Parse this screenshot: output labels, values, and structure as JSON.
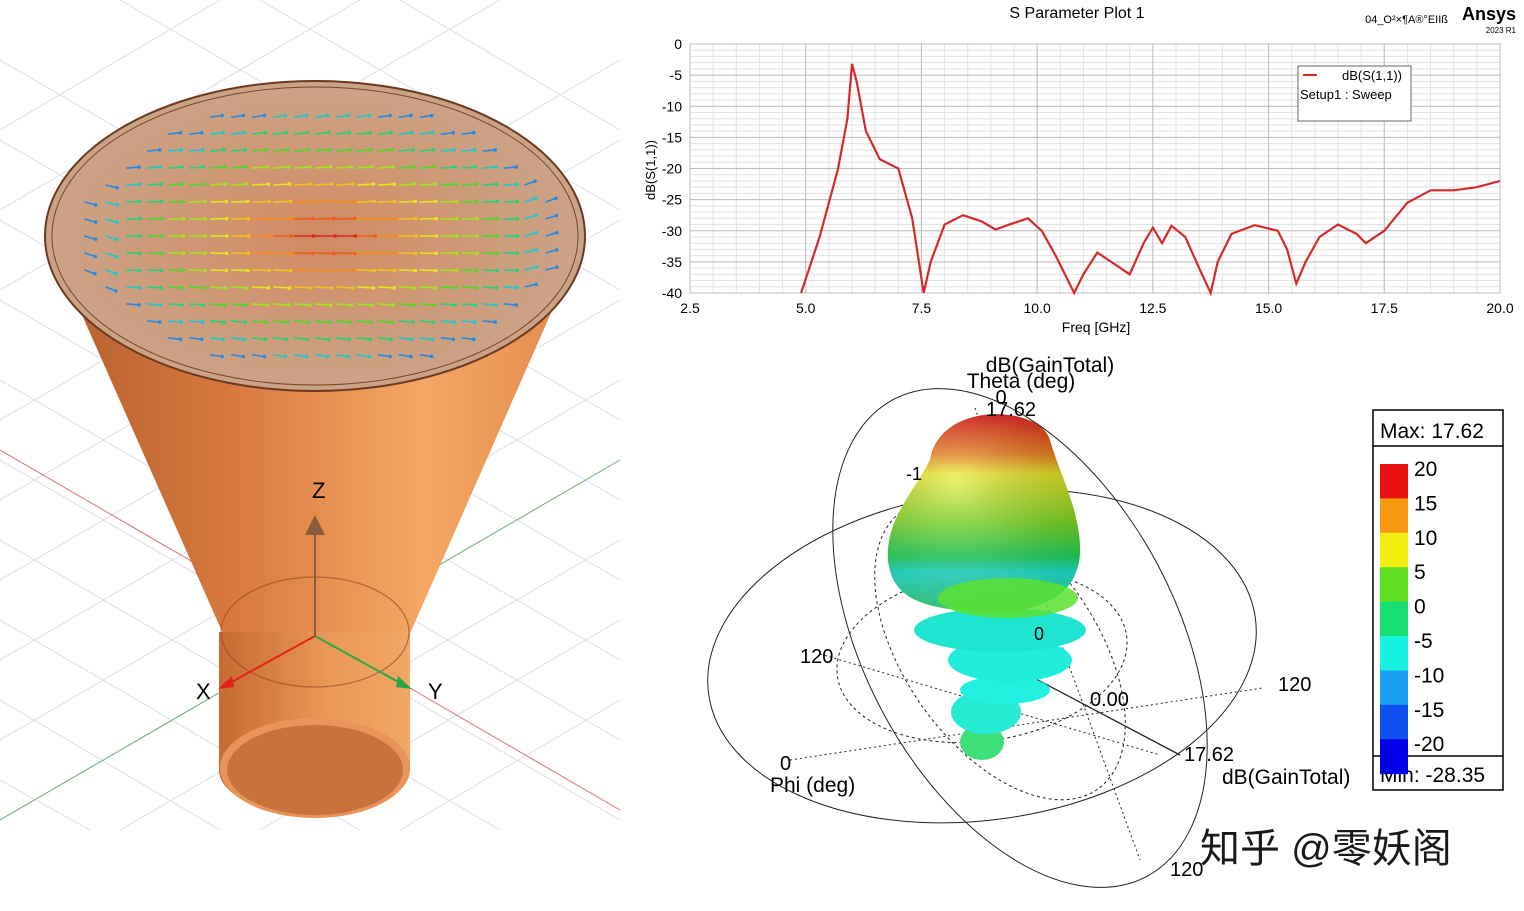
{
  "colors": {
    "horn": "#d9783f",
    "horn_light": "#f2a766",
    "horn_dark": "#b35e2d",
    "curve": "#d42a2a",
    "grid": "#cfcfcf",
    "axis_z": "#8a5a3c",
    "axis_x": "#e0211d",
    "axis_y": "#2aa54a"
  },
  "model_view": {
    "axis_labels": {
      "x": "X",
      "y": "Y",
      "z": "Z"
    }
  },
  "s_plot": {
    "project": "04_O²×¶A®°EIIß",
    "brand": "Ansys",
    "brand_version": "2023 R1"
  },
  "chart_data": [
    {
      "type": "line",
      "title": "S Parameter Plot 1",
      "xlabel": "Freq [GHz]",
      "ylabel": "dB(S(1,1))",
      "xlim": [
        2.5,
        20.0
      ],
      "ylim": [
        -40,
        0
      ],
      "xticks": [
        2.5,
        5.0,
        7.5,
        10.0,
        12.5,
        15.0,
        17.5,
        20.0
      ],
      "xtick_labels": [
        "2.5",
        "5.0",
        "7.5",
        "10.0",
        "12.5",
        "15.0",
        "17.5",
        "20.0"
      ],
      "yticks": [
        0,
        -5,
        -10,
        -15,
        -20,
        -25,
        -30,
        -35,
        -40
      ],
      "ytick_labels": [
        "0",
        "-5",
        "-10",
        "-15",
        "-20",
        "-25",
        "-30",
        "-35",
        "-40"
      ],
      "legend": {
        "position": "top-right",
        "entries": [
          "dB(S(1,1))",
          "Setup1 : Sweep"
        ]
      },
      "series": [
        {
          "name": "dB(S(1,1))",
          "x": [
            4.9,
            5.3,
            5.7,
            5.9,
            6.0,
            6.1,
            6.3,
            6.6,
            7.0,
            7.3,
            7.55,
            7.7,
            8.0,
            8.4,
            8.8,
            9.1,
            9.4,
            9.8,
            10.1,
            10.4,
            10.8,
            11.0,
            11.3,
            11.6,
            12.0,
            12.3,
            12.5,
            12.7,
            12.9,
            13.2,
            13.5,
            13.75,
            13.9,
            14.2,
            14.7,
            15.2,
            15.4,
            15.6,
            15.8,
            16.1,
            16.5,
            16.9,
            17.1,
            17.5,
            18.0,
            18.5,
            19.0,
            19.5,
            20.0
          ],
          "y": [
            -40,
            -31,
            -20,
            -12,
            -3.2,
            -6,
            -14,
            -18.5,
            -20,
            -28,
            -40,
            -35,
            -29,
            -27.5,
            -28.5,
            -29.8,
            -29,
            -28,
            -30,
            -34,
            -40,
            -37,
            -33.5,
            -35,
            -37,
            -32,
            -29.5,
            -32,
            -29.2,
            -31,
            -36,
            -40,
            -35,
            -30.5,
            -29.1,
            -30,
            -33,
            -38.5,
            -35,
            -31,
            -29,
            -30.5,
            -32,
            -30,
            -25.5,
            -23.5,
            -23.5,
            -23,
            -22
          ]
        }
      ]
    },
    {
      "type": "heatmap",
      "title": "dB(GainTotal)",
      "quantity": "dB(GainTotal)",
      "axes": {
        "theta": "Theta (deg)",
        "phi": "Phi (deg)"
      },
      "max_value": 17.62,
      "min_value": -28.35,
      "max_label": "Max: 17.62",
      "min_label": "Min: -28.35",
      "scale_labels": [
        "20",
        "15",
        "10",
        "5",
        "0",
        "-5",
        "-10",
        "-15",
        "-20"
      ],
      "scale_colors": [
        "#e81010",
        "#f79a10",
        "#f2ef10",
        "#60e020",
        "#18e070",
        "#18f0e0",
        "#1aa0f0",
        "#1050f0",
        "#0000e8"
      ],
      "annotations": [
        "0",
        "17.62",
        "0.00",
        "120",
        "120",
        "0",
        "120",
        "17.62",
        "-1",
        "0"
      ]
    }
  ],
  "watermark": "知乎 @零妖阁"
}
